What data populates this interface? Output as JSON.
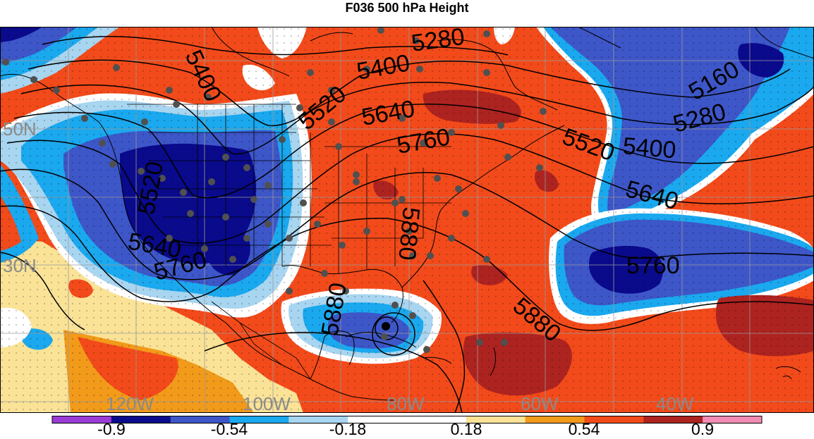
{
  "title": "F036 500 hPa Height",
  "map": {
    "lat_labels": [
      "50N",
      "30N"
    ],
    "lon_labels": [
      "120W",
      "100W",
      "80W",
      "60W",
      "40W"
    ],
    "contour_labels": [
      "5280",
      "5400",
      "5160",
      "5280",
      "5400",
      "5520",
      "5640",
      "5520",
      "5640",
      "5760",
      "5640",
      "5760",
      "5520",
      "5400",
      "5880",
      "5880",
      "5880",
      "5760"
    ],
    "colors": {
      "deep_blue": "#0a0a8c",
      "blue": "#3d56c8",
      "light_blue": "#1aa8ee",
      "pale_blue": "#a8d5f0",
      "white": "#ffffff",
      "pale_yellow": "#fae397",
      "orange": "#f29a1a",
      "red_orange": "#f24a1a",
      "dark_red": "#ad2320"
    }
  },
  "colorbar": {
    "labels": [
      "-0.9",
      "-0.54",
      "-0.18",
      "0.18",
      "0.54",
      "0.9"
    ],
    "colors": [
      "#9b3bd6",
      "#0a0a8c",
      "#3d56c8",
      "#1aa8ee",
      "#a8d5f0",
      "#ffffff",
      "#ffffff",
      "#fae397",
      "#f29a1a",
      "#f24a1a",
      "#ad2320",
      "#f28cb4"
    ]
  }
}
